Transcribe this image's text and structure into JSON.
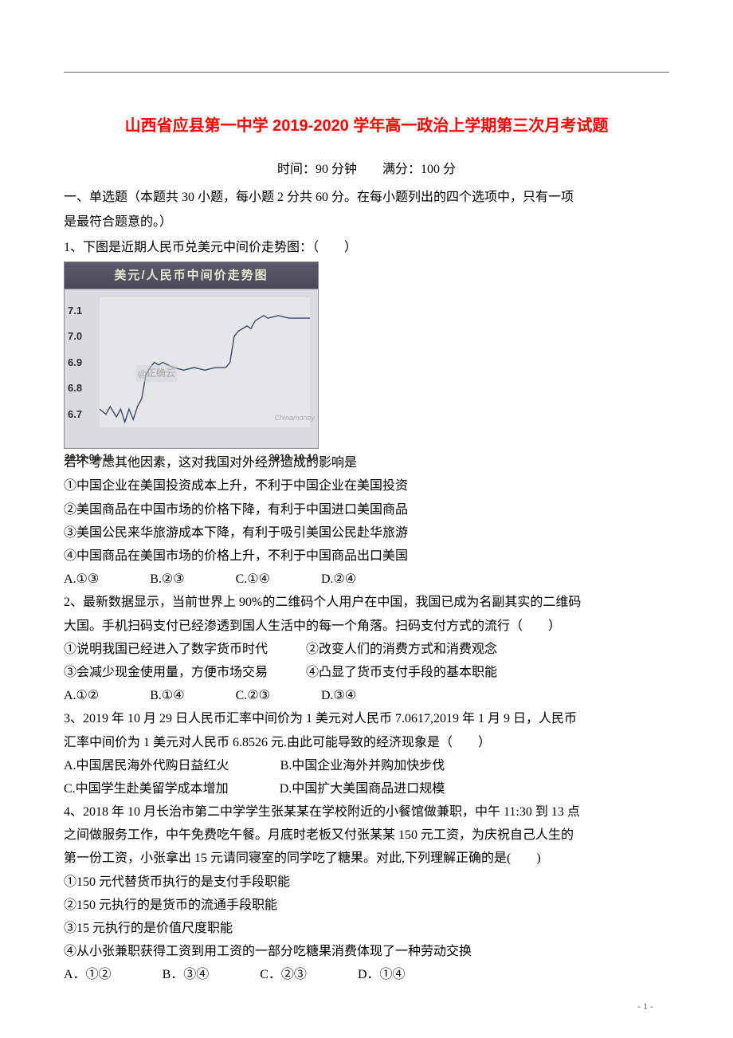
{
  "title": "山西省应县第一中学 2019-2020 学年高一政治上学期第三次月考试题",
  "meta": "时间：90 分钟　　满分：100 分",
  "section_instr_1": "一、单选题（本题共 30 小题，每小题 2 分共 60 分。在每小题列出的四个选项中，只有一项",
  "section_instr_2": "是最符合题意的。）",
  "q1": {
    "stem": "1、下图是近期人民币兑美元中间价走势图：（　　）",
    "chart": {
      "title": "美元/人民币中间价走势图",
      "yticks": [
        "7.1",
        "7.0",
        "6.9",
        "6.8",
        "6.7"
      ],
      "ytick_color": "#2a2a2a",
      "background": "#d8dce0",
      "plot_bg": "#e4e6e8",
      "line_color": "#3a4a6a",
      "x_left": "2019-04-11",
      "x_right": "2019-10-10",
      "watermark": "@正确云",
      "brand": "Chinamoney",
      "ymin": 6.65,
      "ymax": 7.15,
      "series": [
        [
          0.0,
          6.72
        ],
        [
          0.03,
          6.7
        ],
        [
          0.05,
          6.73
        ],
        [
          0.08,
          6.69
        ],
        [
          0.1,
          6.72
        ],
        [
          0.12,
          6.67
        ],
        [
          0.14,
          6.72
        ],
        [
          0.16,
          6.68
        ],
        [
          0.18,
          6.73
        ],
        [
          0.2,
          6.76
        ],
        [
          0.22,
          6.85
        ],
        [
          0.24,
          6.88
        ],
        [
          0.26,
          6.9
        ],
        [
          0.28,
          6.89
        ],
        [
          0.3,
          6.9
        ],
        [
          0.35,
          6.88
        ],
        [
          0.4,
          6.87
        ],
        [
          0.45,
          6.88
        ],
        [
          0.5,
          6.87
        ],
        [
          0.55,
          6.88
        ],
        [
          0.6,
          6.88
        ],
        [
          0.62,
          6.9
        ],
        [
          0.64,
          7.0
        ],
        [
          0.66,
          7.02
        ],
        [
          0.7,
          7.04
        ],
        [
          0.72,
          7.03
        ],
        [
          0.74,
          7.06
        ],
        [
          0.78,
          7.08
        ],
        [
          0.8,
          7.07
        ],
        [
          0.85,
          7.08
        ],
        [
          0.9,
          7.07
        ],
        [
          0.95,
          7.07
        ],
        [
          1.0,
          7.07
        ]
      ]
    },
    "after1": "若不考虑其他因素，这对我国对外经济造成的影响是",
    "s1": "①中国企业在美国投资成本上升，不利于中国企业在美国投资",
    "s2": "②美国商品在中国市场的价格下降，有利于中国进口美国商品",
    "s3": "③美国公民来华旅游成本下降，有利于吸引美国公民赴华旅游",
    "s4": "④中国商品在美国市场的价格上升，不利于中国商品出口美国",
    "opts": {
      "a": "A.①③",
      "b": "B.②③",
      "c": "C.①④",
      "d": "D.②④"
    }
  },
  "q2": {
    "line1": "2、最新数据显示，当前世界上 90%的二维码个人用户在中国，我国已成为名副其实的二维码",
    "line2": "大国。手机扫码支付已经渗透到国人生活中的每一个角落。扫码支付方式的流行（　　）",
    "pair1a": "①说明我国已经进入了数字货币时代",
    "pair1b": "②改变人们的消费方式和消费观念",
    "pair2a": "③会减少现金使用量，方便市场交易",
    "pair2b": "④凸显了货币支付手段的基本职能",
    "opts": {
      "a": "A.①②",
      "b": "B.①④",
      "c": "C.②③",
      "d": "D.③④"
    }
  },
  "q3": {
    "line1": "3、2019 年 10 月 29 日人民币汇率中间价为 1 美元对人民币 7.0617,2019 年 1 月 9 日，人民币",
    "line2": "汇率中间价为 1 美元对人民币 6.8526 元.由此可能导致的经济现象是（　　）",
    "a": "A.中国居民海外代购日益红火",
    "b": "B.中国企业海外并购加快步伐",
    "c": "C.中国学生赴美留学成本增加",
    "d": "D.中国扩大美国商品进口规模"
  },
  "q4": {
    "line1": "4、2018 年 10 月长治市第二中学学生张某某在学校附近的小餐馆做兼职，中午 11:30 到 13 点",
    "line2": "之间做服务工作，中午免费吃午餐。月底时老板又付张某某 150 元工资，为庆祝自己人生的",
    "line3": "第一份工资，小张拿出 15 元请同寝室的同学吃了糖果。对此,下列理解正确的是(　　)",
    "s1": "①150 元代替货币执行的是支付手段职能",
    "s2": "②150 元执行的是货币的流通手段职能",
    "s3": "③15 元执行的是价值尺度职能",
    "s4": "④从小张兼职获得工资到用工资的一部分吃糖果消费体现了一种劳动交换",
    "opts": {
      "a": "A．①②",
      "b": "B．③④",
      "c": "C．②③",
      "d": "D．①④"
    }
  },
  "page_num": "- 1 -"
}
